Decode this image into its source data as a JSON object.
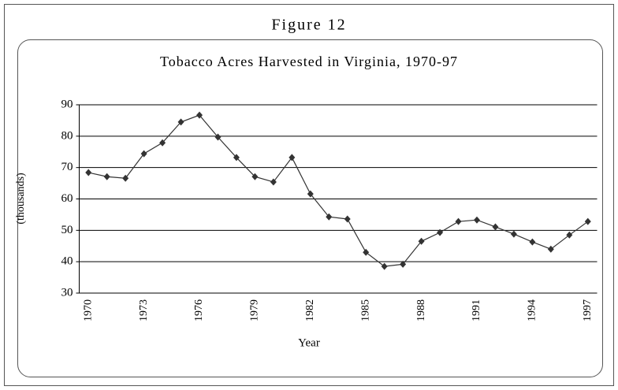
{
  "figure_label": "Figure 12",
  "chart_data": {
    "type": "line",
    "title": "Tobacco Acres Harvested in Virginia, 1970-97",
    "x_label": "Year",
    "y_label": "(thousands)",
    "categories": [
      "1970",
      null,
      null,
      "1973",
      null,
      null,
      "1976",
      null,
      null,
      "1979",
      null,
      null,
      "1982",
      null,
      null,
      "1985",
      null,
      null,
      "1988",
      null,
      null,
      "1991",
      null,
      null,
      "1994",
      null,
      null,
      "1997"
    ],
    "values": [
      68.4,
      67.1,
      66.6,
      74.4,
      77.9,
      84.5,
      86.7,
      79.7,
      73.2,
      67.1,
      65.4,
      73.2,
      61.6,
      54.3,
      53.6,
      43.0,
      38.5,
      39.2,
      46.5,
      49.3,
      52.8,
      53.3,
      51.1,
      48.8,
      46.3,
      44.0,
      48.5,
      52.8
    ],
    "color": "#333333",
    "ylim": [
      30,
      90
    ],
    "yticks": [
      30,
      40,
      50,
      60,
      70,
      80,
      90
    ],
    "grid": true
  }
}
